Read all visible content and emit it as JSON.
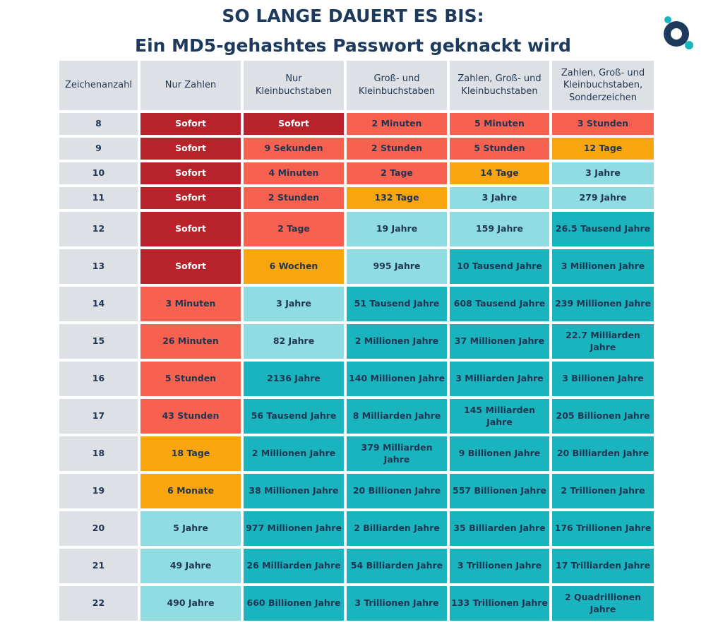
{
  "title": [
    "SO LANGE DAUERT ES BIS:",
    "Ein MD5-gehashtes Passwort geknackt wird"
  ],
  "table": {
    "header": [
      "Zeichenanzahl",
      "Nur Zahlen",
      "Nur\nKleinbuchstaben",
      "Groß- und\nKleinbuchstaben",
      "Zahlen, Groß- und\nKleinbuchstaben",
      "Zahlen, Groß- und\nKleinbuchstaben,\nSonderzeichen"
    ],
    "rows": [
      {
        "length": "8",
        "cells": [
          "Sofort",
          "Sofort",
          "2 Minuten",
          "5 Minuten",
          "3 Stunden"
        ],
        "colors": [
          "#b8232b",
          "#b8232b",
          "#f6624f",
          "#f6624f",
          "#f6624f"
        ]
      },
      {
        "length": "9",
        "cells": [
          "Sofort",
          "9 Sekunden",
          "2 Stunden",
          "5 Stunden",
          "12 Tage"
        ],
        "colors": [
          "#b8232b",
          "#f6624f",
          "#f6624f",
          "#f6624f",
          "#f9a50e"
        ]
      },
      {
        "length": "10",
        "cells": [
          "Sofort",
          "4 Minuten",
          "2 Tage",
          "14 Tage",
          "3 Jahre"
        ],
        "colors": [
          "#b8232b",
          "#f6624f",
          "#f6624f",
          "#f9a50e",
          "#8fdde3"
        ]
      },
      {
        "length": "11",
        "cells": [
          "Sofort",
          "2 Stunden",
          "132 Tage",
          "3 Jahre",
          "279 Jahre"
        ],
        "colors": [
          "#b8232b",
          "#f6624f",
          "#f9a50e",
          "#8fdde3",
          "#8fdde3"
        ]
      },
      {
        "length": "12",
        "cells": [
          "Sofort",
          "2 Tage",
          "19 Jahre",
          "159 Jahre",
          "26.5 Tausend Jahre"
        ],
        "colors": [
          "#b8232b",
          "#f6624f",
          "#8fdde3",
          "#8fdde3",
          "#1ab4bf"
        ]
      },
      {
        "length": "13",
        "cells": [
          "Sofort",
          "6 Wochen",
          "995 Jahre",
          "10 Tausend Jahre",
          "3 Millionen Jahre"
        ],
        "colors": [
          "#b8232b",
          "#f9a50e",
          "#8fdde3",
          "#1ab4bf",
          "#1ab4bf"
        ]
      },
      {
        "length": "14",
        "cells": [
          "3 Minuten",
          "3 Jahre",
          "51 Tausend Jahre",
          "608 Tausend Jahre",
          "239 Millionen Jahre"
        ],
        "colors": [
          "#f6624f",
          "#8fdde3",
          "#1ab4bf",
          "#1ab4bf",
          "#1ab4bf"
        ]
      },
      {
        "length": "15",
        "cells": [
          "26 Minuten",
          "82 Jahre",
          "2 Millionen Jahre",
          "37 Millionen Jahre",
          "22.7 Milliarden Jahre"
        ],
        "colors": [
          "#f6624f",
          "#8fdde3",
          "#1ab4bf",
          "#1ab4bf",
          "#1ab4bf"
        ]
      },
      {
        "length": "16",
        "cells": [
          "5 Stunden",
          "2136 Jahre",
          "140 Millionen Jahre",
          "3 Milliarden Jahre",
          "3 Billionen Jahre"
        ],
        "colors": [
          "#f6624f",
          "#1ab4bf",
          "#1ab4bf",
          "#1ab4bf",
          "#1ab4bf"
        ]
      },
      {
        "length": "17",
        "cells": [
          "43 Stunden",
          "56 Tausend Jahre",
          "8 Milliarden Jahre",
          "145 Milliarden Jahre",
          "205 Billionen Jahre"
        ],
        "colors": [
          "#f6624f",
          "#1ab4bf",
          "#1ab4bf",
          "#1ab4bf",
          "#1ab4bf"
        ]
      },
      {
        "length": "18",
        "cells": [
          "18 Tage",
          "2 Millionen Jahre",
          "379 Milliarden Jahre",
          "9 Billionen Jahre",
          "20 Billiarden Jahre"
        ],
        "colors": [
          "#f9a50e",
          "#1ab4bf",
          "#1ab4bf",
          "#1ab4bf",
          "#1ab4bf"
        ]
      },
      {
        "length": "19",
        "cells": [
          "6 Monate",
          "38 Millionen Jahre",
          "20 Billionen Jahre",
          "557 Billionen Jahre",
          "2 Trillionen Jahre"
        ],
        "colors": [
          "#f9a50e",
          "#1ab4bf",
          "#1ab4bf",
          "#1ab4bf",
          "#1ab4bf"
        ]
      },
      {
        "length": "20",
        "cells": [
          "5 Jahre",
          "977 Millionen Jahre",
          "2 Billiarden Jahre",
          "35 Billiarden Jahre",
          "176 Trillionen Jahre"
        ],
        "colors": [
          "#8fdde3",
          "#1ab4bf",
          "#1ab4bf",
          "#1ab4bf",
          "#1ab4bf"
        ]
      },
      {
        "length": "21",
        "cells": [
          "49 Jahre",
          "26 Milliarden Jahre",
          "54 Billiarden Jahre",
          "3 Trillionen Jahre",
          "17 Trilliarden Jahre"
        ],
        "colors": [
          "#8fdde3",
          "#1ab4bf",
          "#1ab4bf",
          "#1ab4bf",
          "#1ab4bf"
        ]
      },
      {
        "length": "22",
        "cells": [
          "490 Jahre",
          "660 Billionen Jahre",
          "3 Trillionen Jahre",
          "133 Trillionen Jahre",
          "2 Quadrillionen\nJahre"
        ],
        "colors": [
          "#8fdde3",
          "#1ab4bf",
          "#1ab4bf",
          "#1ab4bf",
          "#1ab4bf"
        ]
      }
    ]
  }
}
